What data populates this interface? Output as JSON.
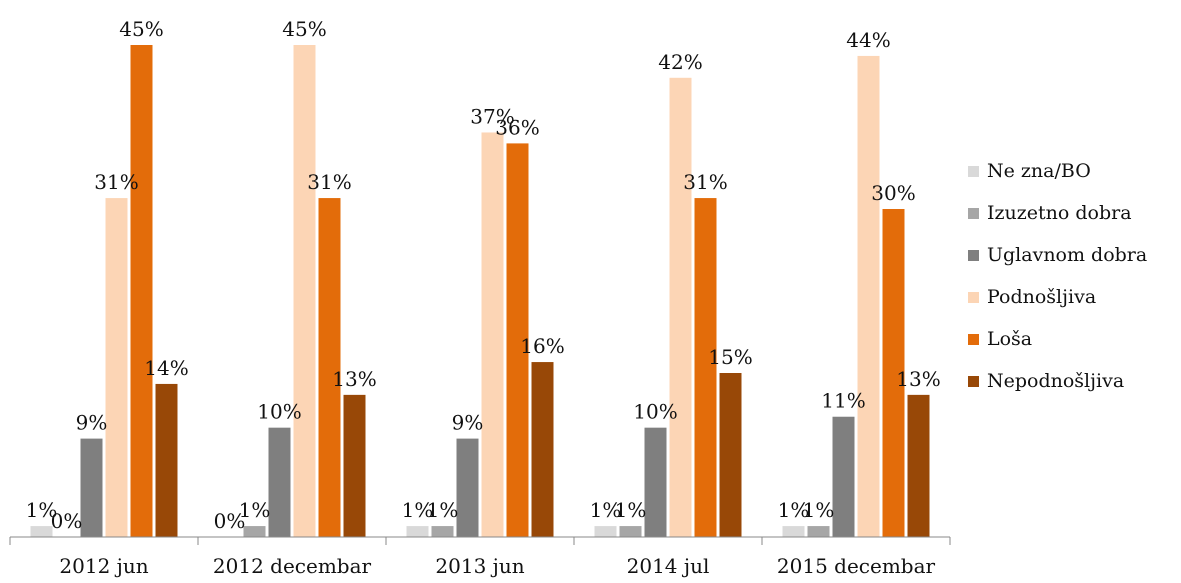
{
  "chart_data": {
    "type": "bar",
    "title": "",
    "xlabel": "",
    "ylabel": "",
    "ylim": [
      0,
      45
    ],
    "grid": false,
    "legend_position": "right",
    "categories": [
      "2012 jun",
      "2012 decembar",
      "2013 jun",
      "2014 jul",
      "2015 decembar"
    ],
    "series": [
      {
        "name": "Ne zna/BO",
        "color": "#d9d9d9",
        "values": [
          1,
          0,
          1,
          1,
          1
        ],
        "labels": [
          "1%",
          "0%",
          "1%",
          "1%",
          "1%"
        ]
      },
      {
        "name": "Izuzetno dobra",
        "color": "#a6a6a6",
        "values": [
          0,
          1,
          1,
          1,
          1
        ],
        "labels": [
          "0%",
          "1%",
          "1%",
          "1%",
          "1%"
        ]
      },
      {
        "name": "Uglavnom dobra",
        "color": "#7f7f7f",
        "values": [
          9,
          10,
          9,
          10,
          11
        ],
        "labels": [
          "9%",
          "10%",
          "9%",
          "10%",
          "11%"
        ]
      },
      {
        "name": "Podnošljiva",
        "color": "#fcd5b5",
        "values": [
          31,
          45,
          37,
          42,
          44
        ],
        "labels": [
          "31%",
          "45%",
          "37%",
          "42%",
          "44%"
        ]
      },
      {
        "name": "Loša",
        "color": "#e36c0a",
        "values": [
          45,
          31,
          36,
          31,
          30
        ],
        "labels": [
          "45%",
          "31%",
          "36%",
          "31%",
          "30%"
        ]
      },
      {
        "name": "Nepodnošljiva",
        "color": "#984807",
        "values": [
          14,
          13,
          16,
          15,
          13
        ],
        "labels": [
          "14%",
          "13%",
          "16%",
          "15%",
          "13%"
        ]
      }
    ]
  }
}
